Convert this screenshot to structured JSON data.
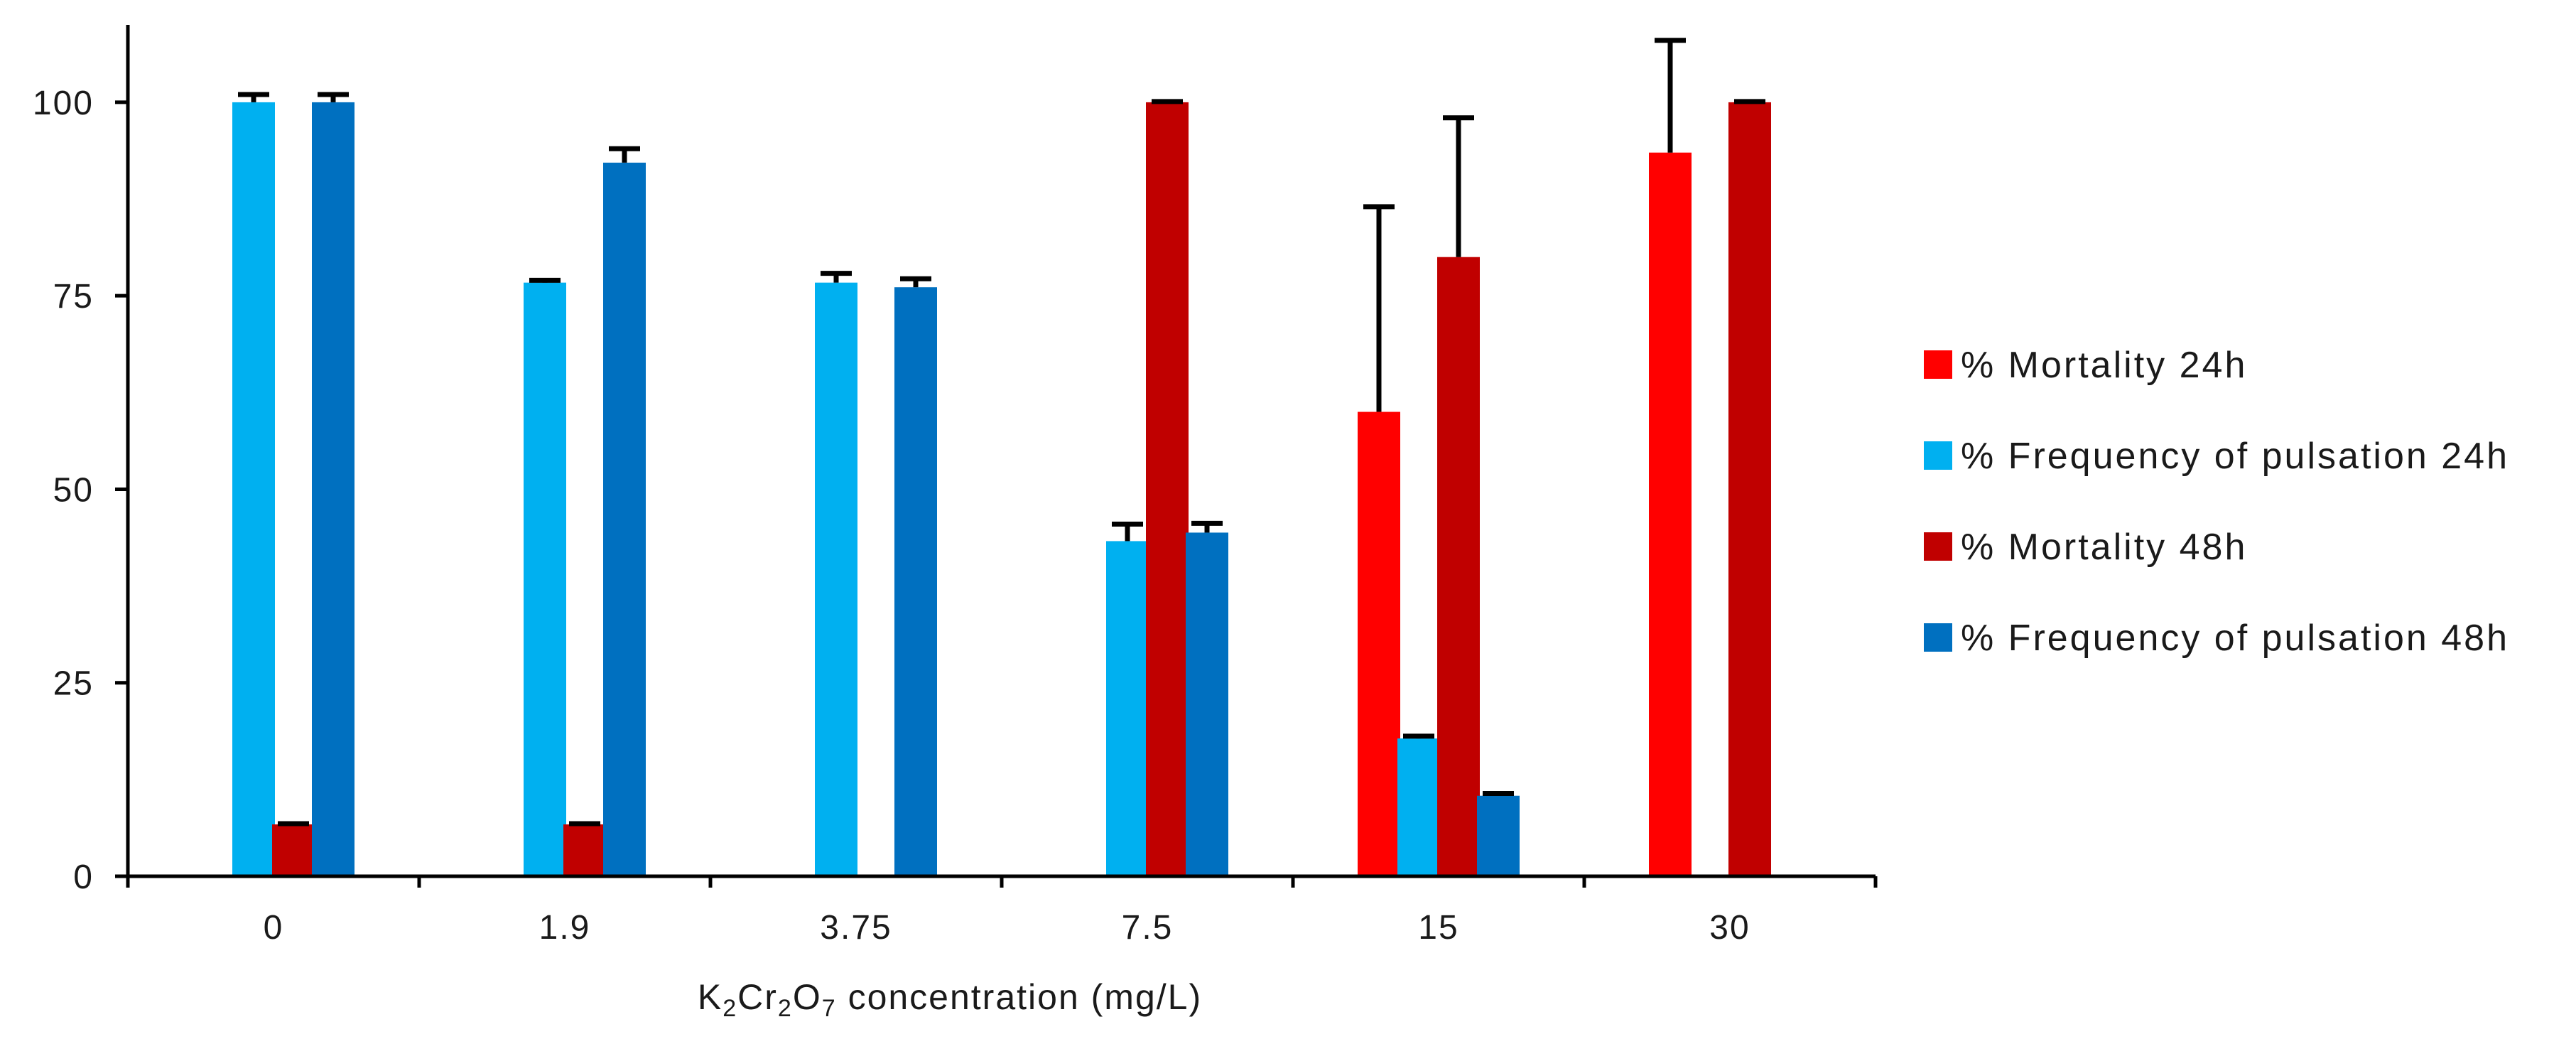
{
  "chart_data": {
    "type": "bar",
    "title": "",
    "xlabel": "K2Cr2O7 concentration (mg/L)",
    "xlabel_parts": {
      "k": "K",
      "k_sub": "2",
      "cr": "Cr",
      "cr_sub": "2",
      "o": "O",
      "o_sub": "7",
      "rest": " concentration (mg/L)"
    },
    "ylabel": "",
    "ylim": [
      0,
      110
    ],
    "yticks": [
      0,
      25,
      50,
      75,
      100
    ],
    "categories": [
      "0",
      "1.9",
      "3.75",
      "7.5",
      "15",
      "30"
    ],
    "series": [
      {
        "name": "% Mortality 24h",
        "color": "#ff0000",
        "values": [
          null,
          null,
          null,
          null,
          60,
          93.5
        ],
        "errors": [
          null,
          null,
          null,
          null,
          26.5,
          14.5
        ]
      },
      {
        "name": "% Frequency of pulsation 24h",
        "color": "#00b0f0",
        "values": [
          100,
          76.7,
          76.7,
          43.3,
          17.8,
          null
        ],
        "errors": [
          1,
          0.3,
          1.2,
          2.2,
          0.3,
          null
        ]
      },
      {
        "name": "% Mortality 48h",
        "color": "#c00000",
        "values": [
          6.7,
          6.7,
          null,
          100,
          80,
          100
        ],
        "errors": [
          0.1,
          0.1,
          null,
          0.1,
          18,
          0.1
        ]
      },
      {
        "name": "% Frequency of pulsation 48h",
        "color": "#0070c0",
        "values": [
          100,
          92.2,
          76.1,
          44.4,
          10.4,
          null
        ],
        "errors": [
          1,
          1.8,
          1.1,
          1.2,
          0.3,
          null
        ]
      }
    ],
    "legend_position": "right",
    "grid": false
  }
}
